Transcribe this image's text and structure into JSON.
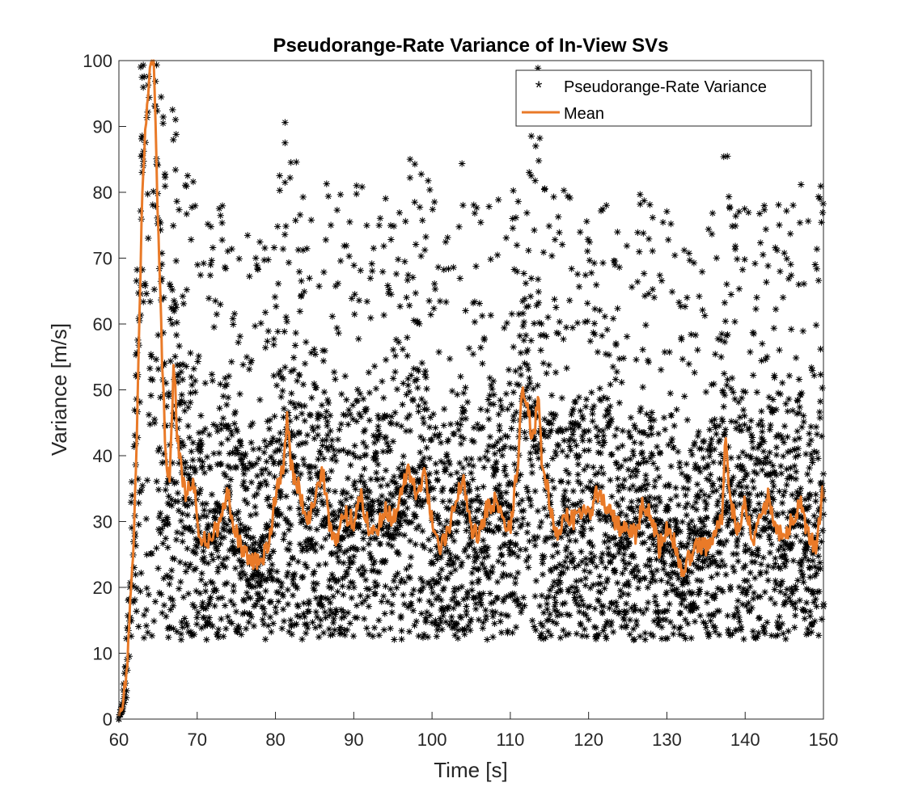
{
  "colors": {
    "scatter": "#000000",
    "mean": "#E97A28",
    "axes": "#262626",
    "background": "#ffffff"
  },
  "chart_data": {
    "type": "scatter",
    "title": "Pseudorange-Rate Variance of In-View SVs",
    "xlabel": "Time [s]",
    "ylabel": "Variance [m/s]",
    "xlim": [
      60,
      150
    ],
    "ylim": [
      0,
      100
    ],
    "xticks": [
      60,
      70,
      80,
      90,
      100,
      110,
      120,
      130,
      140,
      150
    ],
    "yticks": [
      0,
      10,
      20,
      30,
      40,
      50,
      60,
      70,
      80,
      90,
      100
    ],
    "xtick_labels": [
      "60",
      "70",
      "80",
      "90",
      "100",
      "110",
      "120",
      "130",
      "140",
      "150"
    ],
    "ytick_labels": [
      "0",
      "10",
      "20",
      "30",
      "40",
      "50",
      "60",
      "70",
      "80",
      "90",
      "100"
    ],
    "grid": false,
    "legend_position": "top-right",
    "series": [
      {
        "name": "Pseudorange-Rate Variance",
        "kind": "scatter",
        "marker": "asterisk",
        "color": "#000000"
      },
      {
        "name": "Mean",
        "kind": "line",
        "color": "#E97A28",
        "x": [
          60.0,
          60.5,
          61.0,
          61.5,
          62.0,
          62.5,
          63.0,
          63.5,
          64.0,
          64.5,
          65.0,
          65.5,
          66.0,
          66.5,
          67.0,
          67.5,
          68.0,
          68.5,
          69.0,
          69.5,
          70.0,
          70.5,
          71.0,
          72.0,
          73.0,
          74.0,
          74.5,
          75.0,
          76.0,
          77.0,
          78.0,
          79.0,
          80.0,
          81.0,
          81.5,
          82.0,
          83.0,
          84.0,
          85.0,
          86.0,
          87.0,
          88.0,
          88.5,
          89.0,
          90.0,
          91.0,
          92.0,
          93.0,
          94.0,
          95.0,
          96.0,
          97.0,
          98.0,
          99.0,
          100.0,
          101.0,
          102.0,
          103.0,
          104.0,
          105.0,
          106.0,
          107.0,
          108.0,
          109.0,
          110.0,
          111.0,
          111.5,
          112.0,
          113.0,
          113.5,
          114.0,
          115.0,
          116.0,
          117.0,
          118.0,
          119.0,
          120.0,
          121.0,
          122.0,
          123.0,
          124.0,
          125.0,
          126.0,
          127.0,
          128.0,
          129.0,
          130.0,
          131.0,
          132.0,
          133.0,
          134.0,
          135.0,
          136.0,
          137.0,
          137.5,
          138.0,
          139.0,
          140.0,
          141.0,
          142.0,
          143.0,
          144.0,
          145.0,
          146.0,
          147.0,
          148.0,
          149.0,
          150.0
        ],
        "y": [
          0.0,
          2.0,
          8.0,
          18.0,
          30.0,
          55.0,
          80.0,
          92.0,
          100.0,
          100.0,
          75.0,
          55.0,
          40.0,
          36.0,
          55.0,
          42.0,
          38.0,
          34.0,
          35.0,
          37.0,
          30.0,
          28.0,
          27.0,
          28.0,
          30.0,
          35.0,
          29.0,
          28.0,
          25.0,
          24.0,
          24.0,
          26.0,
          34.0,
          38.0,
          46.0,
          38.0,
          35.0,
          29.0,
          33.0,
          38.0,
          29.0,
          27.0,
          32.0,
          31.0,
          30.0,
          34.0,
          28.0,
          29.0,
          32.0,
          30.0,
          35.0,
          38.0,
          34.0,
          37.0,
          30.0,
          26.0,
          28.0,
          34.0,
          36.0,
          29.0,
          28.0,
          32.0,
          33.0,
          30.0,
          29.0,
          40.0,
          50.0,
          48.0,
          42.0,
          50.0,
          40.0,
          33.0,
          28.0,
          31.0,
          30.0,
          32.0,
          31.0,
          34.0,
          33.0,
          31.0,
          29.0,
          29.0,
          28.0,
          33.0,
          31.0,
          26.0,
          29.0,
          27.0,
          22.0,
          25.0,
          27.0,
          26.0,
          28.0,
          30.0,
          43.0,
          34.0,
          28.0,
          33.0,
          26.0,
          31.0,
          34.0,
          29.0,
          28.0,
          30.0,
          33.0,
          28.0,
          26.0,
          35.0
        ]
      }
    ]
  }
}
